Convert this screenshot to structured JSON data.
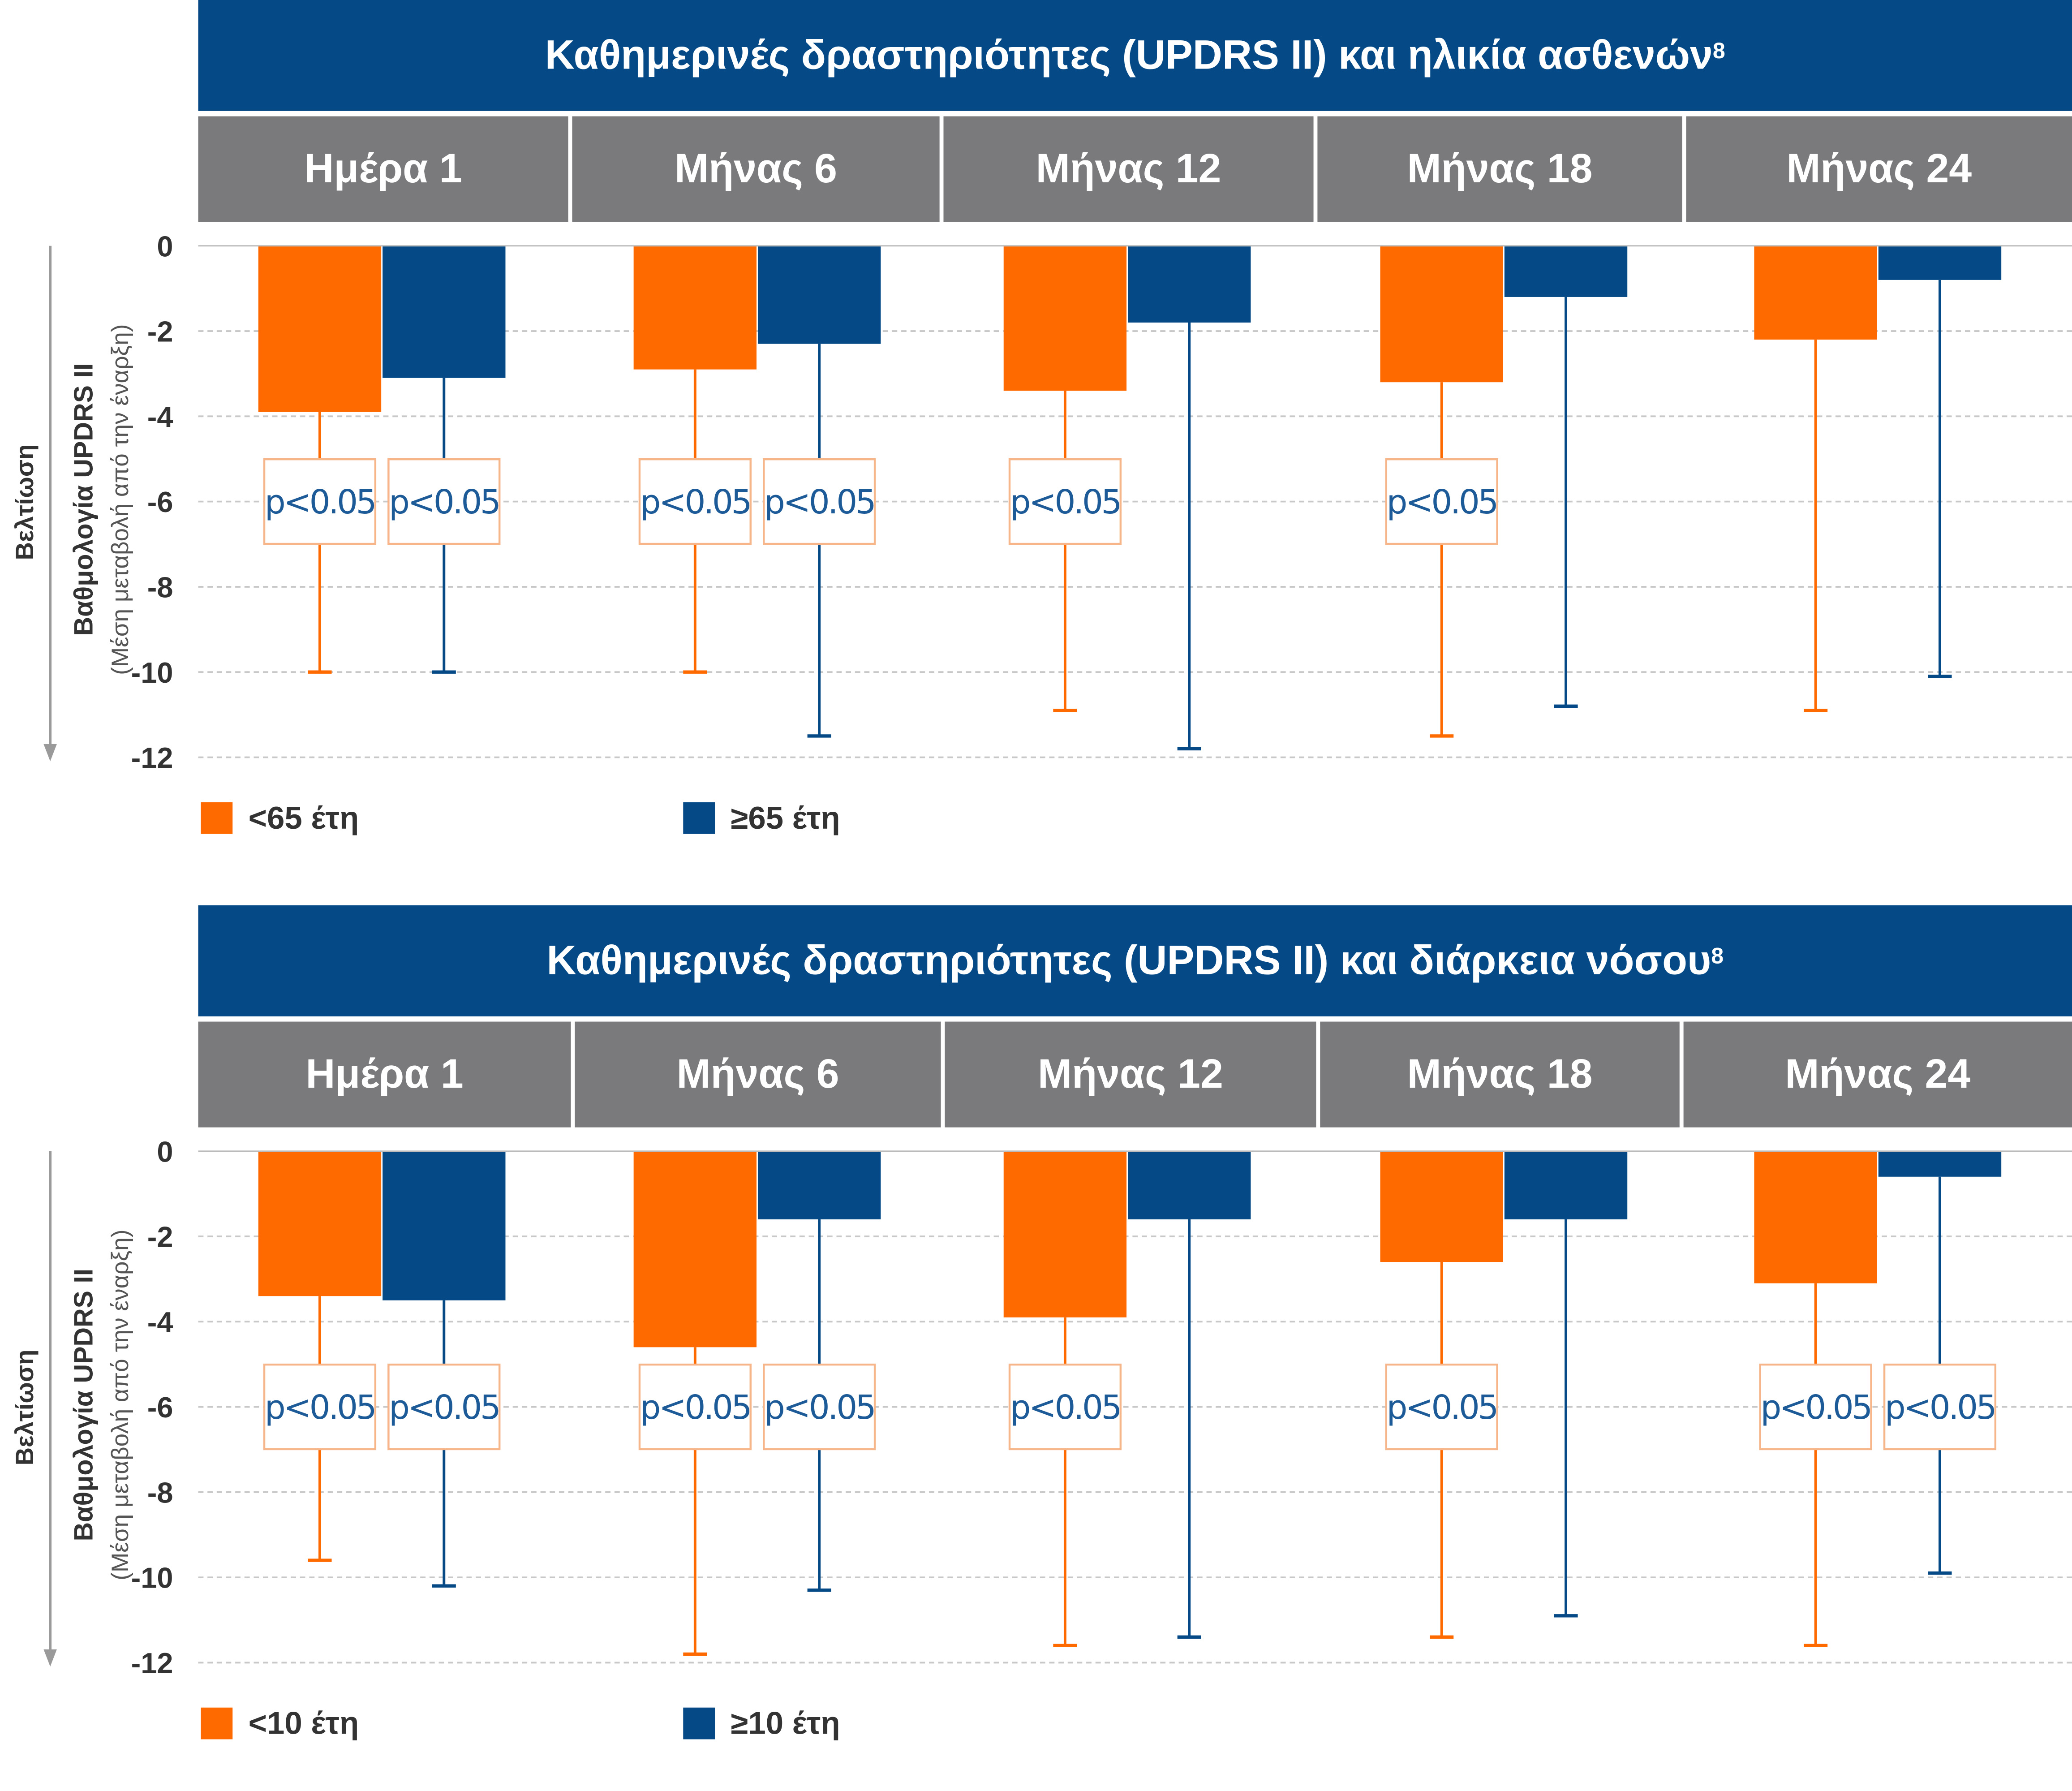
{
  "panels": [
    {
      "title": "Καθημερινές δραστηριότητες (UPDRS II) και ηλικία ασθενών",
      "title_sup": "8",
      "legend": [
        {
          "label": "<65 έτη",
          "color": "#ff6a00"
        },
        {
          "label": "≥65 έτη",
          "color": "#054a86"
        }
      ],
      "periods": [
        "Ημέρα 1",
        "Μήνας 6",
        "Μήνας 12",
        "Μήνας 18",
        "Μήνας 24"
      ],
      "ylabel_main": "Βαθμολογία UPDRS II",
      "ylabel_sub": "(Μέση μεταβολή από την έναρξη)",
      "arrow_label": "Βελτίωση"
    },
    {
      "title": "Καθημερινές δραστηριότητες (UPDRS II) και διάρκεια νόσου",
      "title_sup": "8",
      "legend": [
        {
          "label": "<10 έτη",
          "color": "#ff6a00"
        },
        {
          "label": "≥10 έτη",
          "color": "#054a86"
        }
      ],
      "periods": [
        "Ημέρα 1",
        "Μήνας 6",
        "Μήνας 12",
        "Μήνας 18",
        "Μήνας 24"
      ],
      "ylabel_main": "Βαθμολογία UPDRS II",
      "ylabel_sub": "(Μέση μεταβολή από την έναρξη)",
      "arrow_label": "Βελτίωση"
    }
  ],
  "chart_data": [
    {
      "type": "bar",
      "title": "Καθημερινές δραστηριότητες (UPDRS II) και ηλικία ασθενών",
      "categories": [
        "Ημέρα 1",
        "Μήνας 6",
        "Μήνας 12",
        "Μήνας 18",
        "Μήνας 24"
      ],
      "ylabel": "Βαθμολογία UPDRS II (Μέση μεταβολή από την έναρξη)",
      "ylim": [
        -12,
        0
      ],
      "yticks": [
        0,
        -2,
        -4,
        -6,
        -8,
        -10,
        -12
      ],
      "grid": true,
      "legend_position": "bottom-left",
      "annotation": "p<0.05",
      "series": [
        {
          "name": "<65 έτη",
          "color": "#ff6a00",
          "values": [
            -3.9,
            -2.9,
            -3.4,
            -3.2,
            -2.2
          ],
          "error_low": [
            -10.0,
            -10.0,
            -10.9,
            -11.5,
            -10.9
          ],
          "significant": [
            true,
            true,
            true,
            true,
            false
          ]
        },
        {
          "name": "≥65 έτη",
          "color": "#054a86",
          "values": [
            -3.1,
            -2.3,
            -1.8,
            -1.2,
            -0.8
          ],
          "error_low": [
            -10.0,
            -11.5,
            -11.8,
            -10.8,
            -10.1
          ],
          "significant": [
            true,
            true,
            false,
            false,
            false
          ]
        }
      ]
    },
    {
      "type": "bar",
      "title": "Καθημερινές δραστηριότητες (UPDRS II) και διάρκεια νόσου",
      "categories": [
        "Ημέρα 1",
        "Μήνας 6",
        "Μήνας 12",
        "Μήνας 18",
        "Μήνας 24"
      ],
      "ylabel": "Βαθμολογία UPDRS II (Μέση μεταβολή από την έναρξη)",
      "ylim": [
        -12,
        0
      ],
      "yticks": [
        0,
        -2,
        -4,
        -6,
        -8,
        -10,
        -12
      ],
      "grid": true,
      "legend_position": "bottom-left",
      "annotation": "p<0.05",
      "series": [
        {
          "name": "<10 έτη",
          "color": "#ff6a00",
          "values": [
            -3.4,
            -4.6,
            -3.9,
            -2.6,
            -3.1
          ],
          "error_low": [
            -9.6,
            -11.8,
            -11.6,
            -11.4,
            -11.6
          ],
          "significant": [
            true,
            true,
            true,
            true,
            true
          ]
        },
        {
          "name": "≥10 έτη",
          "color": "#054a86",
          "values": [
            -3.5,
            -1.6,
            -1.6,
            -1.6,
            -0.6
          ],
          "error_low": [
            -10.2,
            -10.3,
            -11.4,
            -10.9,
            -9.9
          ],
          "significant": [
            true,
            true,
            false,
            false,
            true
          ]
        }
      ]
    }
  ]
}
